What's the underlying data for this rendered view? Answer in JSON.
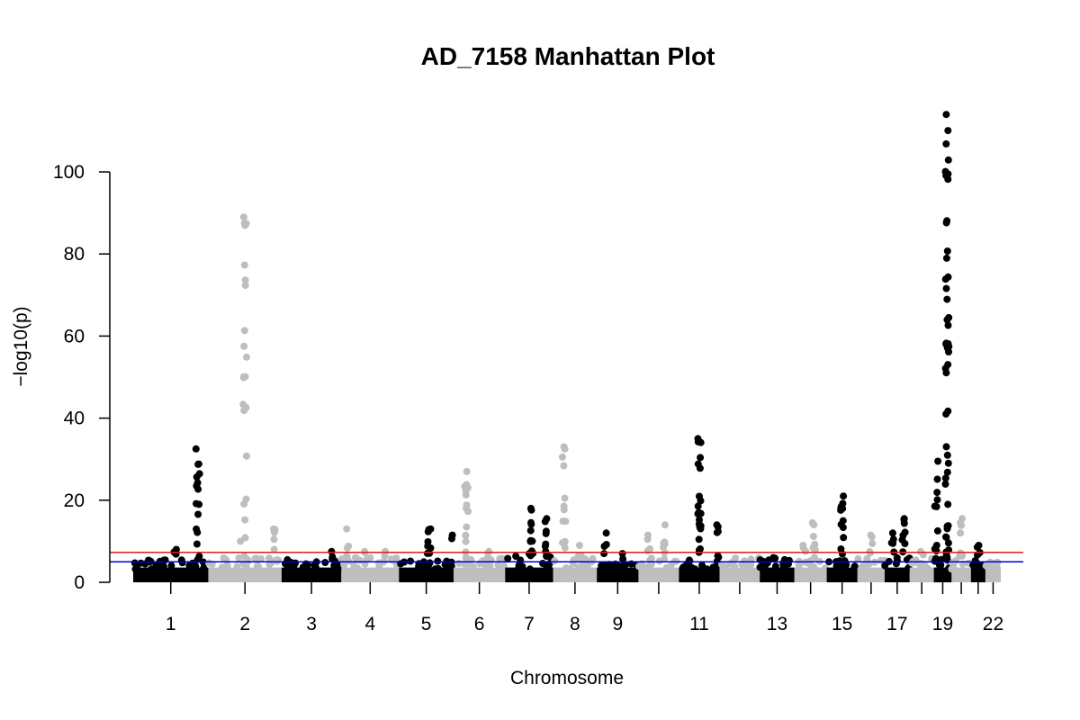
{
  "chart_data": {
    "type": "scatter",
    "title": "AD_7158 Manhattan Plot",
    "xlabel": "Chromosome",
    "ylabel": "−log10(p)",
    "ylim": [
      0,
      100
    ],
    "y_ticks": [
      0,
      20,
      40,
      60,
      80,
      100
    ],
    "grid": false,
    "legend": "none",
    "colors": {
      "odd": "#000000",
      "even": "#bebebe",
      "suggestive_line": "#0000cd",
      "genomewide_line": "#e41a1c"
    },
    "thresholds": [
      {
        "name": "suggestive",
        "value": 5.0,
        "color": "#0000cd"
      },
      {
        "name": "genome-wide",
        "value": 7.3,
        "color": "#e41a1c"
      }
    ],
    "chromosomes": [
      {
        "chr": 1,
        "label": "1",
        "length": 249,
        "base": 5.5,
        "peaks": [
          {
            "pos": 0.86,
            "max": 32.5,
            "n": 16
          },
          {
            "pos": 0.55,
            "max": 8,
            "n": 3
          }
        ]
      },
      {
        "chr": 2,
        "label": "2",
        "length": 243,
        "base": 6,
        "peaks": [
          {
            "pos": 0.5,
            "max": 89,
            "n": 22
          },
          {
            "pos": 0.9,
            "max": 13,
            "n": 6
          },
          {
            "pos": 0.45,
            "max": 10,
            "n": 1
          }
        ]
      },
      {
        "chr": 3,
        "label": "3",
        "length": 198,
        "base": 5.5,
        "peaks": [
          {
            "pos": 0.85,
            "max": 7.5,
            "n": 3
          }
        ]
      },
      {
        "chr": 4,
        "label": "4",
        "length": 191,
        "base": 6,
        "peaks": [
          {
            "pos": 0.12,
            "max": 13,
            "n": 6
          },
          {
            "pos": 0.4,
            "max": 7.5,
            "n": 2
          },
          {
            "pos": 0.75,
            "max": 7.5,
            "n": 2
          }
        ]
      },
      {
        "chr": 5,
        "label": "5",
        "length": 181,
        "base": 5.5,
        "peaks": [
          {
            "pos": 0.55,
            "max": 13,
            "n": 8
          },
          {
            "pos": 0.98,
            "max": 11.5,
            "n": 2
          }
        ]
      },
      {
        "chr": 6,
        "label": "6",
        "length": 171,
        "base": 6,
        "peaks": [
          {
            "pos": 0.25,
            "max": 27,
            "n": 14
          },
          {
            "pos": 0.7,
            "max": 7.5,
            "n": 2
          }
        ]
      },
      {
        "chr": 7,
        "label": "7",
        "length": 159,
        "base": 7,
        "peaks": [
          {
            "pos": 0.55,
            "max": 18,
            "n": 10
          },
          {
            "pos": 0.85,
            "max": 15.5,
            "n": 7
          }
        ]
      },
      {
        "chr": 8,
        "label": "8",
        "length": 145,
        "base": 6,
        "peaks": [
          {
            "pos": 0.25,
            "max": 33,
            "n": 12
          },
          {
            "pos": 0.6,
            "max": 9,
            "n": 3
          }
        ]
      },
      {
        "chr": 9,
        "label": "9",
        "length": 138,
        "base": 5,
        "peaks": [
          {
            "pos": 0.2,
            "max": 12,
            "n": 4
          },
          {
            "pos": 0.6,
            "max": 7,
            "n": 2
          }
        ]
      },
      {
        "chr": 10,
        "label": "",
        "length": 134,
        "base": 6,
        "peaks": [
          {
            "pos": 0.25,
            "max": 11.5,
            "n": 4
          },
          {
            "pos": 0.65,
            "max": 14,
            "n": 6
          }
        ]
      },
      {
        "chr": 11,
        "label": "11",
        "length": 135,
        "base": 5.5,
        "peaks": [
          {
            "pos": 0.5,
            "max": 35,
            "n": 22
          },
          {
            "pos": 0.95,
            "max": 14,
            "n": 6
          }
        ]
      },
      {
        "chr": 12,
        "label": "",
        "length": 133,
        "base": 6,
        "peaks": []
      },
      {
        "chr": 13,
        "label": "13",
        "length": 115,
        "base": 5.5,
        "peaks": [
          {
            "pos": 0.4,
            "max": 6,
            "n": 2
          }
        ]
      },
      {
        "chr": 14,
        "label": "",
        "length": 107,
        "base": 6,
        "peaks": [
          {
            "pos": 0.6,
            "max": 14.5,
            "n": 7
          },
          {
            "pos": 0.3,
            "max": 9,
            "n": 3
          }
        ]
      },
      {
        "chr": 15,
        "label": "15",
        "length": 102,
        "base": 5.5,
        "peaks": [
          {
            "pos": 0.5,
            "max": 21,
            "n": 12
          }
        ]
      },
      {
        "chr": 16,
        "label": "",
        "length": 90,
        "base": 6,
        "peaks": [
          {
            "pos": 0.5,
            "max": 11.5,
            "n": 5
          }
        ]
      },
      {
        "chr": 17,
        "label": "17",
        "length": 83,
        "base": 6,
        "peaks": [
          {
            "pos": 0.3,
            "max": 12,
            "n": 5
          },
          {
            "pos": 0.75,
            "max": 15.5,
            "n": 8
          }
        ]
      },
      {
        "chr": 18,
        "label": "",
        "length": 80,
        "base": 6,
        "peaks": [
          {
            "pos": 0.5,
            "max": 7.5,
            "n": 2
          }
        ]
      },
      {
        "chr": 19,
        "label": "19",
        "length": 59,
        "base": 6,
        "peaks": [
          {
            "pos": 0.75,
            "max": 114,
            "n": 48
          },
          {
            "pos": 0.15,
            "max": 29.5,
            "n": 10
          }
        ]
      },
      {
        "chr": 20,
        "label": "",
        "length": 64,
        "base": 6,
        "peaks": [
          {
            "pos": 0.5,
            "max": 15.5,
            "n": 8
          }
        ]
      },
      {
        "chr": 21,
        "label": "",
        "length": 48,
        "base": 5.5,
        "peaks": [
          {
            "pos": 0.5,
            "max": 9,
            "n": 4
          }
        ]
      },
      {
        "chr": 22,
        "label": "22",
        "length": 51,
        "base": 5,
        "peaks": []
      }
    ]
  }
}
